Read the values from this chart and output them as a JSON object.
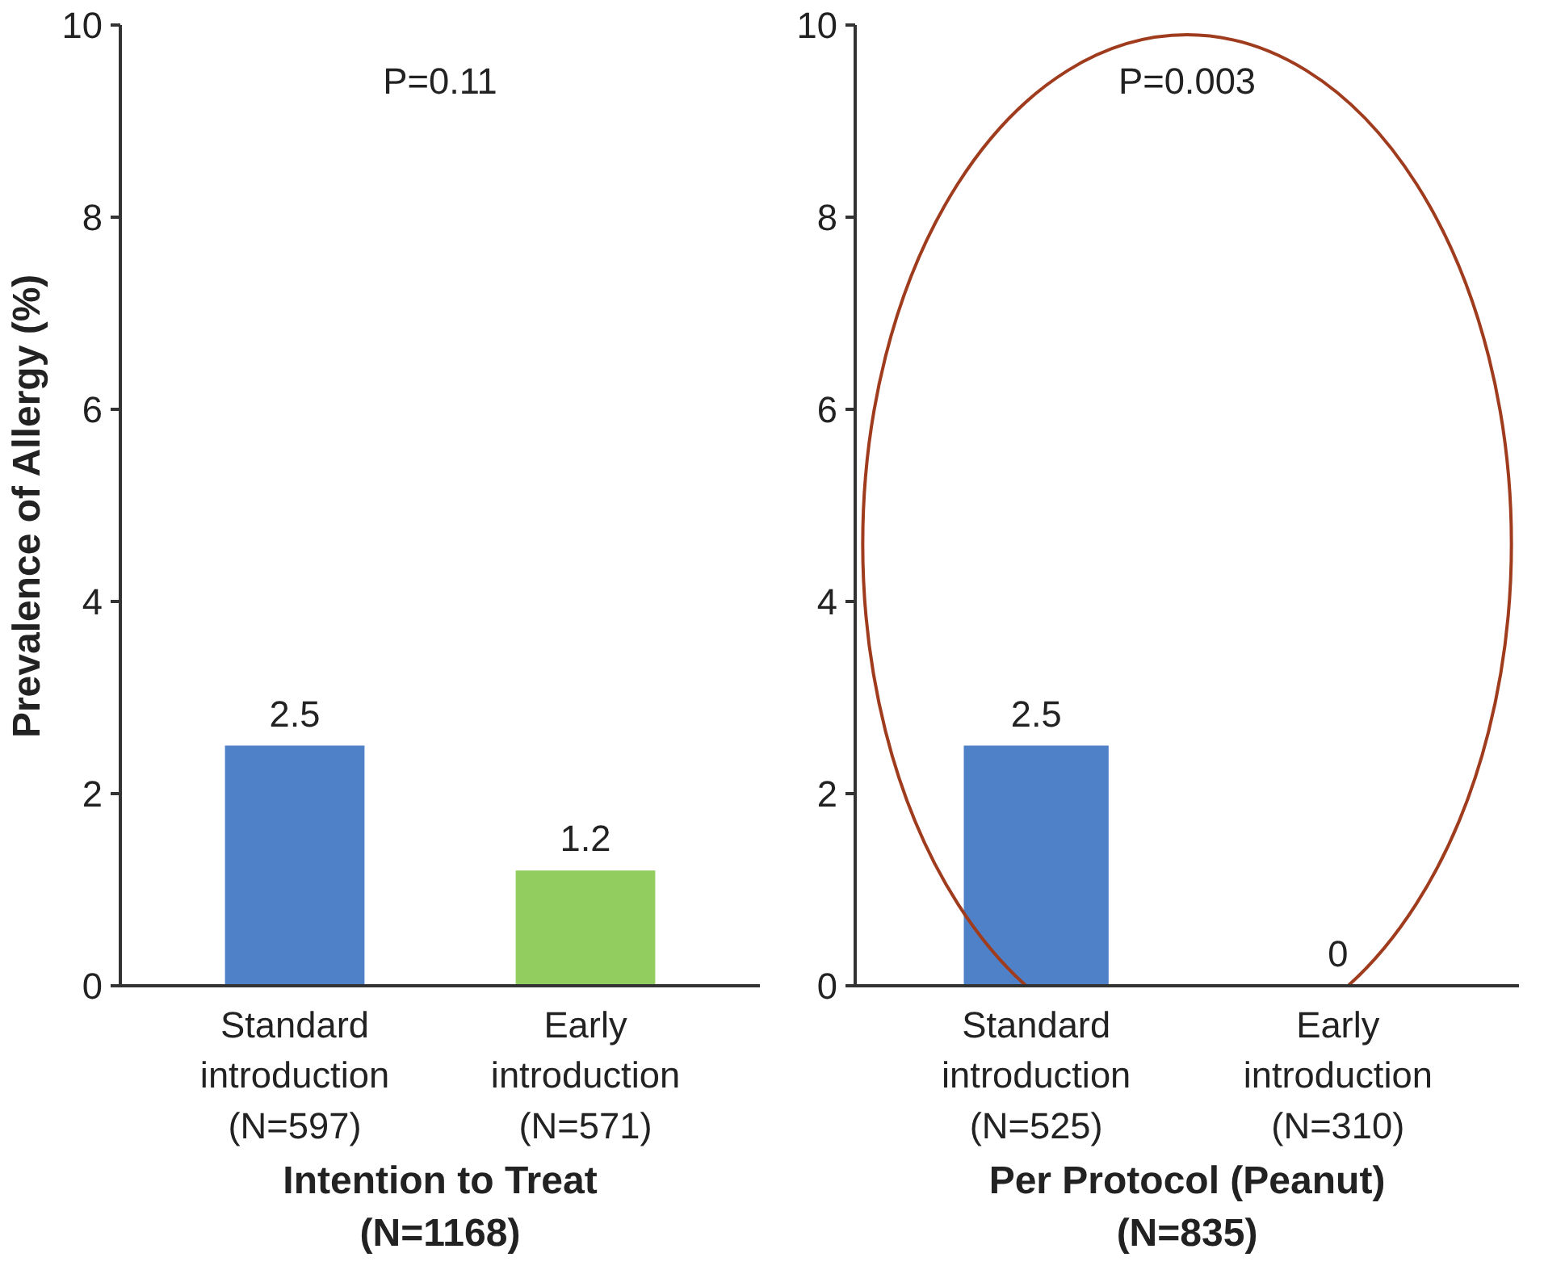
{
  "chart_data": [
    {
      "type": "bar",
      "xlabel": "Intention to Treat (N=1168)",
      "ylabel": "Prevalence of Allergy (%)",
      "categories": [
        "Standard introduction (N=597)",
        "Early introduction (N=571)"
      ],
      "values": [
        2.5,
        1.2
      ],
      "colors": [
        "#4f81c8",
        "#92cd5f"
      ],
      "ylim": [
        0,
        10
      ],
      "yticks": [
        0,
        2,
        4,
        6,
        8,
        10
      ],
      "data_labels": true,
      "grid": false,
      "annotations": [
        "P=0.11"
      ]
    },
    {
      "type": "bar",
      "xlabel": "Per Protocol (Peanut) (N=835)",
      "categories": [
        "Standard introduction (N=525)",
        "Early introduction (N=310)"
      ],
      "values": [
        2.5,
        0
      ],
      "colors": [
        "#4f81c8",
        "#92cd5f"
      ],
      "ylim": [
        0,
        10
      ],
      "yticks": [
        0,
        2,
        4,
        6,
        8,
        10
      ],
      "data_labels": true,
      "grid": false,
      "annotations": [
        "P=0.003"
      ]
    }
  ]
}
